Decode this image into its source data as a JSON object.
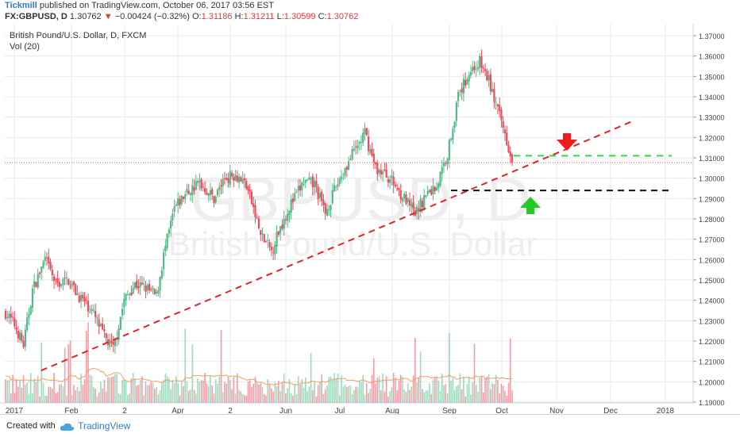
{
  "header": {
    "author": "Tickmill",
    "published_text": "published on TradingView.com, October 06, 2017 03:56 EST",
    "symbol": "FX:GBPUSD, D",
    "last": "1.30762",
    "change": "−0.00424 (−0.32%)",
    "o_label": "O:",
    "o_val": "1.31186",
    "h_label": "H:",
    "h_val": "1.31211",
    "l_label": "L:",
    "l_val": "1.30599",
    "c_label": "C:",
    "c_val": "1.30762"
  },
  "legend": {
    "title": "British Pound/U.S. Dollar, D, FXCM",
    "volume": "Vol (20)"
  },
  "watermark": {
    "symbol": "GBPUSD, D",
    "name": "British Pound/U.S. Dollar"
  },
  "footer": {
    "created_with": "Created with",
    "brand": "TradingView"
  },
  "chart_data": {
    "type": "candlestick",
    "y_ticks": [
      "1.37000",
      "1.36000",
      "1.35000",
      "1.34000",
      "1.33000",
      "1.32000",
      "1.31000",
      "1.30000",
      "1.29000",
      "1.28000",
      "1.27000",
      "1.26000",
      "1.25000",
      "1.24000",
      "1.23000",
      "1.22000",
      "1.21000",
      "1.20000",
      "1.19000"
    ],
    "ylim": [
      1.19,
      1.37
    ],
    "x_ticks": [
      "2017",
      "Feb",
      "2",
      "Apr",
      "2",
      "Jun",
      "Jul",
      "Aug",
      "Sep",
      "Oct",
      "Nov",
      "Dec",
      "2018"
    ],
    "price_label": "1.30762",
    "colors": {
      "up": "#53b987",
      "down": "#eb4d5c",
      "grid": "#e6eaf0",
      "trend": "#e0242a",
      "support": "#111111",
      "target": "#33dd33",
      "ma": "#f0a060"
    },
    "key_prices": [
      {
        "name": "support",
        "price": 1.294
      },
      {
        "name": "resistance",
        "price": 1.311
      },
      {
        "name": "current",
        "price": 1.30762
      }
    ],
    "trendline": {
      "from": {
        "date": "2017-01-16",
        "price": 1.2055
      },
      "to": {
        "date": "2017-12-15",
        "price": 1.3285
      }
    },
    "annotations": [
      "down-arrow",
      "up-arrow"
    ]
  }
}
